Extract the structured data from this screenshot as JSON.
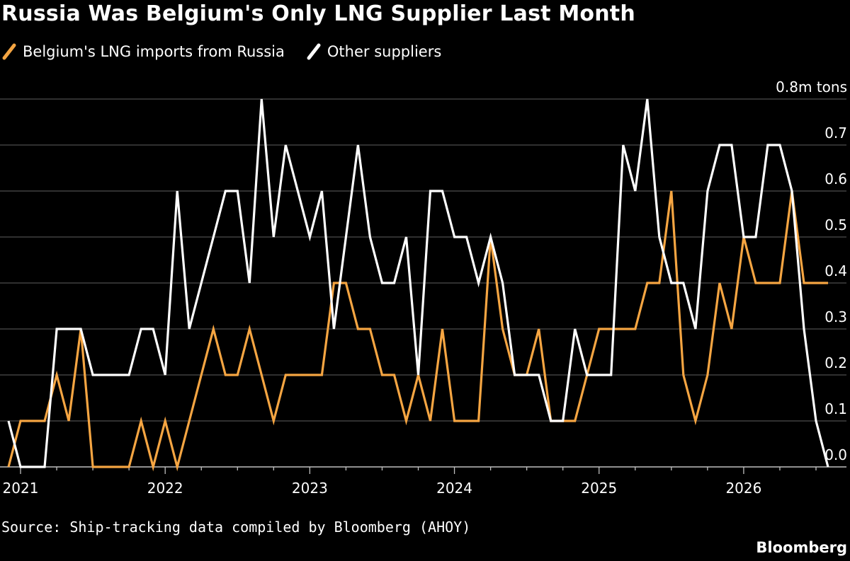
{
  "header": {
    "title": "Russia Was Belgium's Only LNG Supplier Last Month"
  },
  "legend": [
    {
      "label": "Belgium's LNG imports from Russia",
      "color": "#f5a542"
    },
    {
      "label": "Other suppliers",
      "color": "#ffffff"
    }
  ],
  "footer": {
    "source": "Source: Ship-tracking data compiled by Bloomberg (AHOY)",
    "brand": "Bloomberg"
  },
  "chart_data": {
    "type": "line",
    "unit_label": "0.8m tons",
    "ylim": [
      0,
      0.8
    ],
    "yticks": [
      0.0,
      0.1,
      0.2,
      0.3,
      0.4,
      0.5,
      0.6,
      0.7,
      0.8
    ],
    "ytick_labels": [
      "0.0",
      "0.1",
      "0.2",
      "0.3",
      "0.4",
      "0.5",
      "0.6",
      "0.7",
      "0.8m tons"
    ],
    "x_start": "2020-12",
    "x_end": "2026-07",
    "x_tick_labels": [
      "2021",
      "2022",
      "2023",
      "2024",
      "2025",
      "2026"
    ],
    "grid": true,
    "series": [
      {
        "name": "Belgium's LNG imports from Russia",
        "color": "#f5a542",
        "values": [
          0.0,
          0.1,
          0.1,
          0.1,
          0.2,
          0.1,
          0.3,
          0.0,
          0.0,
          0.0,
          0.0,
          0.1,
          0.0,
          0.1,
          0.0,
          0.1,
          0.2,
          0.3,
          0.2,
          0.2,
          0.3,
          0.2,
          0.1,
          0.2,
          0.2,
          0.2,
          0.2,
          0.4,
          0.4,
          0.3,
          0.3,
          0.2,
          0.2,
          0.1,
          0.2,
          0.1,
          0.3,
          0.1,
          0.1,
          0.1,
          0.5,
          0.3,
          0.2,
          0.2,
          0.3,
          0.1,
          0.1,
          0.1,
          0.2,
          0.3,
          0.3,
          0.3,
          0.3,
          0.4,
          0.4,
          0.6,
          0.2,
          0.1,
          0.2,
          0.4,
          0.3,
          0.5,
          0.4,
          0.4,
          0.4,
          0.6,
          0.4,
          0.4,
          0.4
        ]
      },
      {
        "name": "Other suppliers",
        "color": "#ffffff",
        "values": [
          0.1,
          0.0,
          0.0,
          0.0,
          0.3,
          0.3,
          0.3,
          0.2,
          0.2,
          0.2,
          0.2,
          0.3,
          0.3,
          0.2,
          0.6,
          0.3,
          0.4,
          0.5,
          0.6,
          0.6,
          0.4,
          0.8,
          0.5,
          0.7,
          0.6,
          0.5,
          0.6,
          0.3,
          0.5,
          0.7,
          0.5,
          0.4,
          0.4,
          0.5,
          0.2,
          0.6,
          0.6,
          0.5,
          0.5,
          0.4,
          0.5,
          0.4,
          0.2,
          0.2,
          0.2,
          0.1,
          0.1,
          0.3,
          0.2,
          0.2,
          0.2,
          0.7,
          0.6,
          0.8,
          0.5,
          0.4,
          0.4,
          0.3,
          0.6,
          0.7,
          0.7,
          0.5,
          0.5,
          0.7,
          0.7,
          0.6,
          0.3,
          0.1,
          0.0
        ]
      }
    ]
  }
}
